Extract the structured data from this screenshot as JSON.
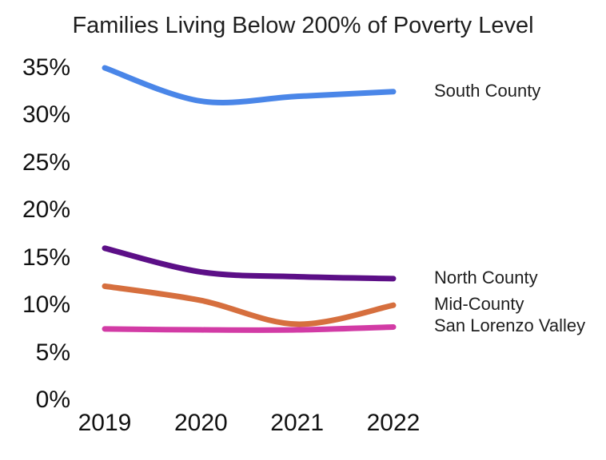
{
  "chart_data": {
    "type": "line",
    "title": "Families Living Below 200% of Poverty Level",
    "categories": [
      "2019",
      "2020",
      "2021",
      "2022"
    ],
    "series": [
      {
        "name": "South County",
        "values": [
          35,
          31.5,
          32,
          32.5
        ],
        "color": "#4a86e8"
      },
      {
        "name": "North County",
        "values": [
          16,
          13.5,
          13,
          12.8
        ],
        "color": "#5c0f87"
      },
      {
        "name": "Mid-County",
        "values": [
          12,
          10.5,
          8,
          10
        ],
        "color": "#d66f3e"
      },
      {
        "name": "San Lorenzo Valley",
        "values": [
          7.5,
          7.4,
          7.4,
          7.7
        ],
        "color": "#d23ba5"
      }
    ],
    "xlabel": "",
    "ylabel": "",
    "ylim": [
      0,
      35
    ],
    "ytick_step": 5,
    "yticks": [
      "0%",
      "5%",
      "10%",
      "15%",
      "20%",
      "25%",
      "30%",
      "35%"
    ],
    "grid": false,
    "axis_lines": false,
    "legend_position": "direct-labels-right",
    "smooth": true
  },
  "colors": {
    "background": "#ffffff",
    "text": "#1f1f1f"
  }
}
